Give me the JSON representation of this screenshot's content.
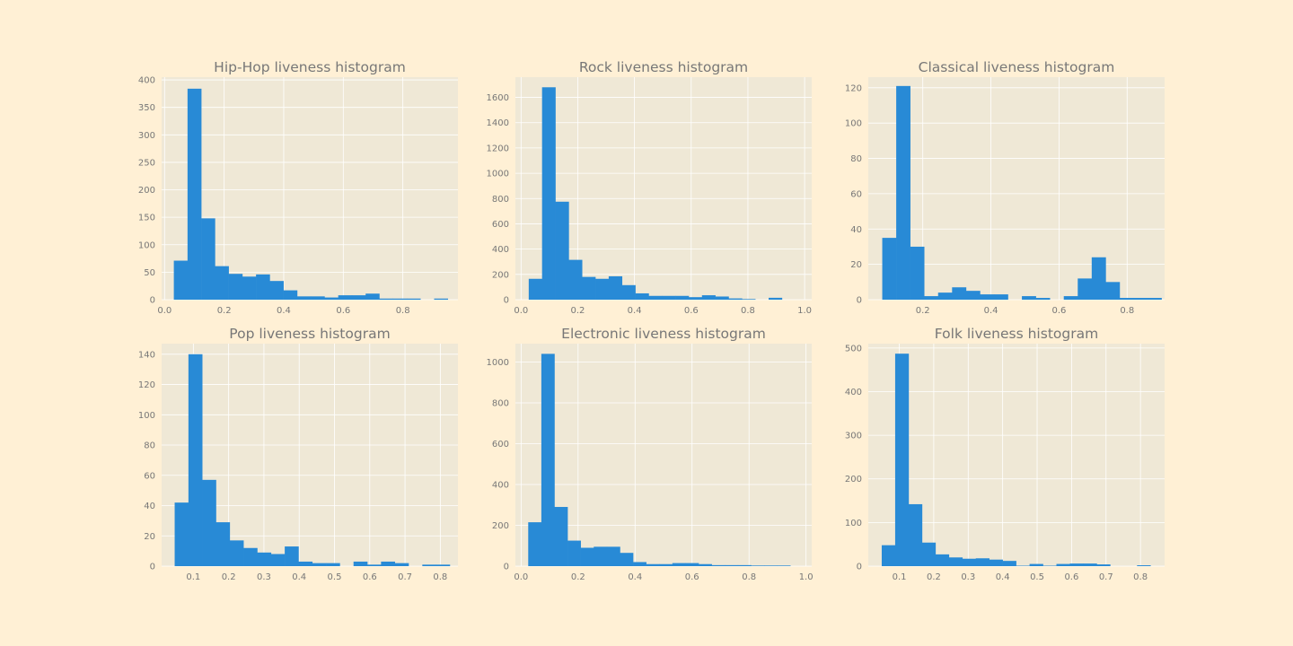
{
  "figure": {
    "background": "#fff0d5",
    "axes_background": "#efe8d6",
    "bar_color": "#288ad6",
    "grid": true
  },
  "chart_data": [
    {
      "type": "bar",
      "title": "Hip-Hop liveness histogram",
      "xlim": [
        -0.01,
        0.985
      ],
      "ylim": [
        0,
        405
      ],
      "xticks": [
        0.0,
        0.2,
        0.4,
        0.6,
        0.8
      ],
      "xtick_labels": [
        "0.0",
        "0.2",
        "0.4",
        "0.6",
        "0.8"
      ],
      "yticks": [
        0,
        50,
        100,
        150,
        200,
        250,
        300,
        350,
        400
      ],
      "ytick_labels": [
        "0",
        "50",
        "100",
        "150",
        "200",
        "250",
        "300",
        "350",
        "400"
      ],
      "bin_edges": [
        0.031,
        0.077,
        0.123,
        0.169,
        0.215,
        0.261,
        0.307,
        0.353,
        0.399,
        0.445,
        0.491,
        0.537,
        0.583,
        0.629,
        0.675,
        0.721,
        0.767,
        0.813,
        0.859,
        0.905,
        0.951
      ],
      "counts": [
        71,
        384,
        148,
        61,
        47,
        42,
        46,
        34,
        17,
        6,
        6,
        4,
        8,
        8,
        11,
        2,
        2,
        2,
        0,
        2
      ]
    },
    {
      "type": "bar",
      "title": "Rock liveness histogram",
      "xlim": [
        -0.02,
        1.025
      ],
      "ylim": [
        0,
        1760
      ],
      "xticks": [
        0.0,
        0.2,
        0.4,
        0.6,
        0.8,
        1.0
      ],
      "xtick_labels": [
        "0.0",
        "0.2",
        "0.4",
        "0.6",
        "0.8",
        "1.0"
      ],
      "yticks": [
        0,
        200,
        400,
        600,
        800,
        1000,
        1200,
        1400,
        1600
      ],
      "ytick_labels": [
        "0",
        "200",
        "400",
        "600",
        "800",
        "1000",
        "1200",
        "1400",
        "1600"
      ],
      "bin_edges": [
        0.027,
        0.074,
        0.121,
        0.168,
        0.215,
        0.262,
        0.309,
        0.356,
        0.403,
        0.45,
        0.497,
        0.544,
        0.591,
        0.638,
        0.685,
        0.732,
        0.779,
        0.826,
        0.873,
        0.92,
        0.967
      ],
      "counts": [
        165,
        1680,
        775,
        315,
        180,
        165,
        185,
        115,
        50,
        30,
        30,
        30,
        20,
        35,
        25,
        10,
        5,
        0,
        15,
        0
      ]
    },
    {
      "type": "bar",
      "title": "Classical liveness histogram",
      "xlim": [
        0.04,
        0.91
      ],
      "ylim": [
        0,
        126
      ],
      "xticks": [
        0.2,
        0.4,
        0.6,
        0.8
      ],
      "xtick_labels": [
        "0.2",
        "0.4",
        "0.6",
        "0.8"
      ],
      "yticks": [
        0,
        20,
        40,
        60,
        80,
        100,
        120
      ],
      "ytick_labels": [
        "0",
        "20",
        "40",
        "60",
        "80",
        "100",
        "120"
      ],
      "bin_edges": [
        0.081,
        0.122,
        0.163,
        0.204,
        0.245,
        0.286,
        0.327,
        0.368,
        0.409,
        0.45,
        0.491,
        0.532,
        0.573,
        0.614,
        0.655,
        0.696,
        0.737,
        0.778,
        0.819,
        0.86,
        0.901
      ],
      "counts": [
        35,
        121,
        30,
        2,
        4,
        7,
        5,
        3,
        3,
        0,
        2,
        1,
        0,
        2,
        12,
        24,
        10,
        1,
        1,
        1
      ]
    },
    {
      "type": "bar",
      "title": "Pop liveness histogram",
      "xlim": [
        0.01,
        0.85
      ],
      "ylim": [
        0,
        147
      ],
      "xticks": [
        0.1,
        0.2,
        0.3,
        0.4,
        0.5,
        0.6,
        0.7,
        0.8
      ],
      "xtick_labels": [
        "0.1",
        "0.2",
        "0.3",
        "0.4",
        "0.5",
        "0.6",
        "0.7",
        "0.8"
      ],
      "yticks": [
        0,
        20,
        40,
        60,
        80,
        100,
        120,
        140
      ],
      "ytick_labels": [
        "0",
        "20",
        "40",
        "60",
        "80",
        "100",
        "120",
        "140"
      ],
      "bin_edges": [
        0.047,
        0.086,
        0.125,
        0.164,
        0.203,
        0.242,
        0.281,
        0.32,
        0.359,
        0.398,
        0.437,
        0.476,
        0.515,
        0.554,
        0.593,
        0.632,
        0.671,
        0.71,
        0.749,
        0.788,
        0.827
      ],
      "counts": [
        42,
        140,
        57,
        29,
        17,
        12,
        9,
        8,
        13,
        3,
        2,
        2,
        0,
        3,
        1,
        3,
        2,
        0,
        1,
        1
      ]
    },
    {
      "type": "bar",
      "title": "Electronic liveness histogram",
      "xlim": [
        -0.02,
        1.02
      ],
      "ylim": [
        0,
        1090
      ],
      "xticks": [
        0.0,
        0.2,
        0.4,
        0.6,
        0.8,
        1.0
      ],
      "xtick_labels": [
        "0.0",
        "0.2",
        "0.4",
        "0.6",
        "0.8",
        "1.0"
      ],
      "yticks": [
        0,
        200,
        400,
        600,
        800,
        1000
      ],
      "ytick_labels": [
        "0",
        "200",
        "400",
        "600",
        "800",
        "1000"
      ],
      "bin_edges": [
        0.025,
        0.071,
        0.117,
        0.163,
        0.209,
        0.255,
        0.301,
        0.347,
        0.393,
        0.439,
        0.485,
        0.531,
        0.577,
        0.623,
        0.669,
        0.715,
        0.761,
        0.807,
        0.853,
        0.899,
        0.945
      ],
      "counts": [
        215,
        1040,
        290,
        125,
        90,
        95,
        95,
        65,
        20,
        10,
        10,
        15,
        15,
        10,
        5,
        5,
        5,
        3,
        3,
        3
      ]
    },
    {
      "type": "bar",
      "title": "Folk liveness histogram",
      "xlim": [
        0.01,
        0.87
      ],
      "ylim": [
        0,
        510
      ],
      "xticks": [
        0.1,
        0.2,
        0.3,
        0.4,
        0.5,
        0.6,
        0.7,
        0.8
      ],
      "xtick_labels": [
        "0.1",
        "0.2",
        "0.3",
        "0.4",
        "0.5",
        "0.6",
        "0.7",
        "0.8"
      ],
      "yticks": [
        0,
        100,
        200,
        300,
        400,
        500
      ],
      "ytick_labels": [
        "0",
        "100",
        "200",
        "300",
        "400",
        "500"
      ],
      "bin_edges": [
        0.049,
        0.088,
        0.127,
        0.166,
        0.205,
        0.244,
        0.283,
        0.322,
        0.361,
        0.4,
        0.439,
        0.478,
        0.517,
        0.556,
        0.595,
        0.634,
        0.673,
        0.712,
        0.751,
        0.79,
        0.829
      ],
      "counts": [
        48,
        487,
        142,
        54,
        27,
        20,
        17,
        18,
        15,
        12,
        1,
        5,
        1,
        5,
        6,
        6,
        4,
        0,
        0,
        2
      ]
    }
  ]
}
